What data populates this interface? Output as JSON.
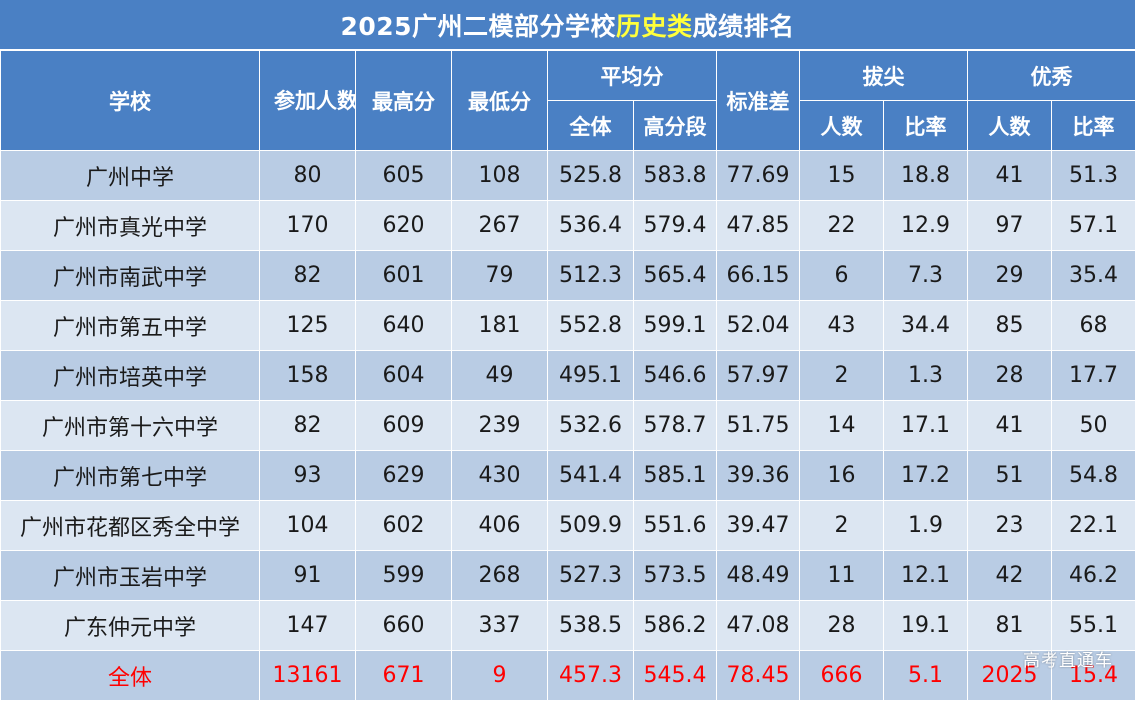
{
  "title": {
    "prefix": "2025广州二模部分学校",
    "highlight": "历史类",
    "suffix": "成绩排名",
    "highlight_color": "#ffff3c"
  },
  "headers": {
    "school": "学校",
    "participants": "参加人数",
    "max": "最高分",
    "min": "最低分",
    "avg": "平均分",
    "avg_all": "全体",
    "avg_high": "高分段",
    "stddev": "标准差",
    "top": "拔尖",
    "top_count": "人数",
    "top_rate": "比率",
    "excellent": "优秀",
    "excellent_count": "人数",
    "excellent_rate": "比率"
  },
  "rows": [
    {
      "school": "广州中学",
      "participants": "80",
      "max": "605",
      "min": "108",
      "avg_all": "525.8",
      "avg_high": "583.8",
      "stddev": "77.69",
      "top_count": "15",
      "top_rate": "18.8",
      "excellent_count": "41",
      "excellent_rate": "51.3"
    },
    {
      "school": "广州市真光中学",
      "participants": "170",
      "max": "620",
      "min": "267",
      "avg_all": "536.4",
      "avg_high": "579.4",
      "stddev": "47.85",
      "top_count": "22",
      "top_rate": "12.9",
      "excellent_count": "97",
      "excellent_rate": "57.1"
    },
    {
      "school": "广州市南武中学",
      "participants": "82",
      "max": "601",
      "min": "79",
      "avg_all": "512.3",
      "avg_high": "565.4",
      "stddev": "66.15",
      "top_count": "6",
      "top_rate": "7.3",
      "excellent_count": "29",
      "excellent_rate": "35.4"
    },
    {
      "school": "广州市第五中学",
      "participants": "125",
      "max": "640",
      "min": "181",
      "avg_all": "552.8",
      "avg_high": "599.1",
      "stddev": "52.04",
      "top_count": "43",
      "top_rate": "34.4",
      "excellent_count": "85",
      "excellent_rate": "68"
    },
    {
      "school": "广州市培英中学",
      "participants": "158",
      "max": "604",
      "min": "49",
      "avg_all": "495.1",
      "avg_high": "546.6",
      "stddev": "57.97",
      "top_count": "2",
      "top_rate": "1.3",
      "excellent_count": "28",
      "excellent_rate": "17.7"
    },
    {
      "school": "广州市第十六中学",
      "participants": "82",
      "max": "609",
      "min": "239",
      "avg_all": "532.6",
      "avg_high": "578.7",
      "stddev": "51.75",
      "top_count": "14",
      "top_rate": "17.1",
      "excellent_count": "41",
      "excellent_rate": "50"
    },
    {
      "school": "广州市第七中学",
      "participants": "93",
      "max": "629",
      "min": "430",
      "avg_all": "541.4",
      "avg_high": "585.1",
      "stddev": "39.36",
      "top_count": "16",
      "top_rate": "17.2",
      "excellent_count": "51",
      "excellent_rate": "54.8"
    },
    {
      "school": "广州市花都区秀全中学",
      "participants": "104",
      "max": "602",
      "min": "406",
      "avg_all": "509.9",
      "avg_high": "551.6",
      "stddev": "39.47",
      "top_count": "2",
      "top_rate": "1.9",
      "excellent_count": "23",
      "excellent_rate": "22.1"
    },
    {
      "school": "广州市玉岩中学",
      "participants": "91",
      "max": "599",
      "min": "268",
      "avg_all": "527.3",
      "avg_high": "573.5",
      "stddev": "48.49",
      "top_count": "11",
      "top_rate": "12.1",
      "excellent_count": "42",
      "excellent_rate": "46.2"
    },
    {
      "school": "广东仲元中学",
      "participants": "147",
      "max": "660",
      "min": "337",
      "avg_all": "538.5",
      "avg_high": "586.2",
      "stddev": "47.08",
      "top_count": "28",
      "top_rate": "19.1",
      "excellent_count": "81",
      "excellent_rate": "55.1"
    }
  ],
  "total": {
    "school": "全体",
    "participants": "13161",
    "max": "671",
    "min": "9",
    "avg_all": "457.3",
    "avg_high": "545.4",
    "stddev": "78.45",
    "top_count": "666",
    "top_rate": "5.1",
    "excellent_count": "2025",
    "excellent_rate": "15.4"
  },
  "watermark": "高考直通车",
  "colors": {
    "header_bg": "#4a80c4",
    "row_dark": "#b9cce4",
    "row_light": "#dce6f2",
    "total_text": "#ff0000"
  }
}
